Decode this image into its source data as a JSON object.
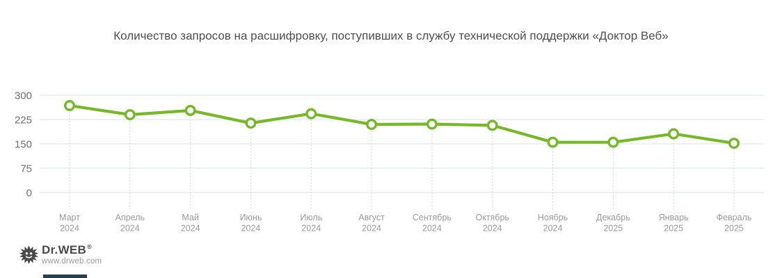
{
  "chart_data": {
    "type": "line",
    "title": "Количество запросов на расшифровку, поступивших в службу технической поддержки «Доктор Веб»",
    "categories": [
      "Март 2024",
      "Апрель 2024",
      "Май 2024",
      "Июнь 2024",
      "Июль 2024",
      "Август 2024",
      "Сентябрь 2024",
      "Октябрь 2024",
      "Ноябрь 2024",
      "Декабрь 2025",
      "Январь 2025",
      "Февраль 2025"
    ],
    "x_labels": [
      {
        "month": "Март",
        "year": "2024"
      },
      {
        "month": "Апрель",
        "year": "2024"
      },
      {
        "month": "Май",
        "year": "2024"
      },
      {
        "month": "Июнь",
        "year": "2024"
      },
      {
        "month": "Июль",
        "year": "2024"
      },
      {
        "month": "Август",
        "year": "2024"
      },
      {
        "month": "Сентябрь",
        "year": "2024"
      },
      {
        "month": "Октябрь",
        "year": "2024"
      },
      {
        "month": "Ноябрь",
        "year": "2024"
      },
      {
        "month": "Декабрь",
        "year": "2025"
      },
      {
        "month": "Январь",
        "year": "2025"
      },
      {
        "month": "Февраль",
        "year": "2025"
      }
    ],
    "values": [
      268,
      240,
      253,
      214,
      243,
      210,
      211,
      207,
      155,
      155,
      181,
      152
    ],
    "yticks": [
      0,
      75,
      150,
      225,
      300
    ],
    "ylim": [
      0,
      300
    ],
    "grid": "horizontal-only",
    "legend": "none",
    "line_color": "#76b82a",
    "marker": {
      "shape": "open-circle",
      "fill": "#ffffff",
      "stroke": "#76b82a"
    },
    "gridline_color": "#e4eef4",
    "guide_color": "#c8c8c8",
    "ytick_color": "#6f6f6f",
    "xtick_color": "#9b9b9b",
    "title_color": "#4e4e4e"
  },
  "logo": {
    "brand": "Dr.WEB",
    "registered": "®",
    "website": "www.drweb.com",
    "color": "#4a4a4a"
  },
  "footer_bar_color": "#233f4e"
}
